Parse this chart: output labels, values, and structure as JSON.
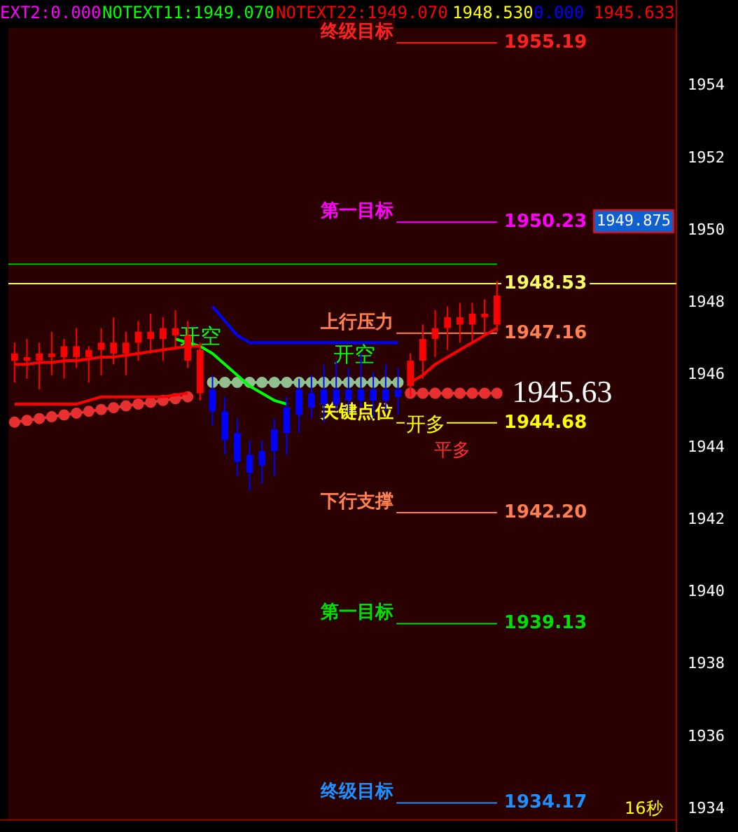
{
  "chart_data": {
    "type": "candlestick",
    "categories": [
      null,
      null,
      null,
      null,
      null,
      null,
      null,
      null,
      null,
      null,
      null,
      null,
      null,
      null,
      null,
      null,
      null,
      null,
      null,
      null,
      null,
      null,
      null,
      null,
      null,
      null,
      null,
      null,
      null,
      null,
      null,
      null,
      null,
      null,
      null,
      null,
      null,
      null,
      null,
      null,
      null,
      null,
      null,
      null,
      null,
      null,
      null,
      null,
      null,
      null,
      null,
      null,
      null,
      null
    ],
    "ohlc": [
      [
        1946.4,
        1946.9,
        1945.8,
        1946.6
      ],
      [
        1946.4,
        1947.0,
        1945.9,
        1946.5
      ],
      [
        1946.4,
        1946.9,
        1945.6,
        1946.6
      ],
      [
        1946.5,
        1947.2,
        1946.0,
        1946.6
      ],
      [
        1946.5,
        1947.0,
        1945.9,
        1946.8
      ],
      [
        1946.5,
        1947.3,
        1946.2,
        1946.8
      ],
      [
        1946.5,
        1946.8,
        1945.8,
        1946.7
      ],
      [
        1946.7,
        1947.3,
        1946.0,
        1946.9
      ],
      [
        1946.6,
        1947.6,
        1946.3,
        1946.9
      ],
      [
        1946.6,
        1947.2,
        1946.0,
        1946.9
      ],
      [
        1946.9,
        1947.5,
        1946.4,
        1947.2
      ],
      [
        1947.0,
        1947.7,
        1946.6,
        1947.2
      ],
      [
        1947.0,
        1947.6,
        1946.4,
        1947.3
      ],
      [
        1947.1,
        1947.8,
        1946.7,
        1947.3
      ],
      [
        1946.4,
        1947.5,
        1946.2,
        1947.1
      ],
      [
        1945.5,
        1946.9,
        1945.3,
        1946.7
      ],
      [
        1945.6,
        1946.0,
        1944.6,
        1945.0
      ],
      [
        1945.0,
        1945.4,
        1943.8,
        1944.2
      ],
      [
        1944.4,
        1944.8,
        1943.2,
        1943.6
      ],
      [
        1943.8,
        1944.2,
        1942.8,
        1943.3
      ],
      [
        1943.9,
        1944.2,
        1943.0,
        1943.5
      ],
      [
        1944.5,
        1944.8,
        1943.2,
        1943.9
      ],
      [
        1945.1,
        1945.4,
        1943.8,
        1944.4
      ],
      [
        1945.6,
        1945.9,
        1944.4,
        1944.9
      ],
      [
        1945.5,
        1946.0,
        1944.8,
        1945.1
      ],
      [
        1945.6,
        1946.3,
        1944.7,
        1945.2
      ],
      [
        1945.6,
        1946.4,
        1945.0,
        1945.2
      ],
      [
        1945.6,
        1946.2,
        1944.9,
        1945.3
      ],
      [
        1945.6,
        1946.6,
        1945.1,
        1945.3
      ],
      [
        1945.6,
        1946.1,
        1944.8,
        1945.3
      ],
      [
        1945.6,
        1946.3,
        1945.0,
        1945.3
      ],
      [
        1945.6,
        1946.2,
        1944.9,
        1945.4
      ],
      [
        1945.7,
        1946.6,
        1945.4,
        1946.4
      ],
      [
        1946.4,
        1947.4,
        1945.9,
        1947.0
      ],
      [
        1947.0,
        1947.8,
        1946.5,
        1947.3
      ],
      [
        1947.3,
        1947.9,
        1946.7,
        1947.6
      ],
      [
        1947.4,
        1948.0,
        1946.9,
        1947.6
      ],
      [
        1947.4,
        1948.0,
        1946.9,
        1947.7
      ],
      [
        1947.6,
        1948.1,
        1947.1,
        1947.7
      ],
      [
        1947.4,
        1948.6,
        1947.2,
        1948.2
      ],
      null,
      null,
      null,
      null,
      null,
      null,
      null,
      null,
      null,
      null,
      null,
      null,
      null,
      null
    ],
    "colors": [
      "#ff0000",
      "#ff0000",
      "#ff0000",
      "#ff0000",
      "#ff0000",
      "#ff0000",
      "#ff0000",
      "#ff0000",
      "#ff0000",
      "#ff0000",
      "#ff0000",
      "#ff0000",
      "#ff0000",
      "#ff0000",
      "#ff0000",
      "#ff0000",
      "#0000ff",
      "#0000ff",
      "#0000ff",
      "#0000ff",
      "#0000ff",
      "#0000ff",
      "#0000ff",
      "#0000ff",
      "#0000ff",
      "#0000ff",
      "#0000ff",
      "#0000ff",
      "#0000ff",
      "#0000ff",
      "#0000ff",
      "#0000ff",
      "#ff0000",
      "#ff0000",
      "#ff0000",
      "#ff0000",
      "#ff0000",
      "#ff0000",
      "#ff0000",
      "#ff0000",
      null,
      null,
      null,
      null,
      null,
      null,
      null,
      null,
      null,
      null,
      null,
      null,
      null,
      null
    ],
    "series": [
      {
        "type": "line",
        "color": "#ff0000",
        "marker": "none",
        "values": [
          1946.3,
          1946.3,
          1946.35,
          1946.35,
          1946.4,
          1946.4,
          1946.45,
          1946.5,
          1946.5,
          1946.55,
          1946.6,
          1946.65,
          1946.7,
          1946.75,
          1946.8,
          1946.8,
          null,
          null,
          null,
          null,
          null,
          null,
          null,
          null,
          null,
          null,
          null,
          null,
          null,
          null,
          null,
          null,
          1945.8,
          1946.0,
          1946.3,
          1946.5,
          1946.7,
          1946.9,
          1947.1,
          1947.3,
          null,
          null,
          null,
          null,
          null,
          null,
          null,
          null,
          null,
          null,
          null,
          null,
          null,
          null
        ]
      },
      {
        "type": "line",
        "color": "#00ff00",
        "marker": "none",
        "values": [
          null,
          null,
          null,
          null,
          null,
          null,
          null,
          null,
          null,
          null,
          null,
          null,
          null,
          1947.0,
          1946.9,
          1946.8,
          1946.6,
          1946.3,
          1946.0,
          1945.7,
          1945.5,
          1945.3,
          1945.2,
          null,
          null,
          null,
          null,
          null,
          null,
          null,
          null,
          null,
          null,
          null,
          null,
          null,
          null,
          null,
          null,
          null,
          null,
          null,
          null,
          null,
          null,
          null,
          null,
          null,
          null,
          null,
          null,
          null,
          null,
          null
        ]
      },
      {
        "type": "line",
        "color": "#0000ff",
        "marker": "none",
        "values": [
          null,
          null,
          null,
          null,
          null,
          null,
          null,
          null,
          null,
          null,
          null,
          null,
          null,
          null,
          null,
          null,
          1947.9,
          1947.5,
          1947.1,
          1946.9,
          1946.9,
          1946.9,
          1946.9,
          1946.9,
          1946.9,
          1946.9,
          1946.9,
          1946.9,
          1946.9,
          1946.9,
          1946.9,
          1946.9,
          null,
          null,
          null,
          null,
          null,
          null,
          null,
          null,
          null,
          null,
          null,
          null,
          null,
          null,
          null,
          null,
          null,
          null,
          null,
          null,
          null,
          null
        ]
      },
      {
        "type": "line",
        "color": "#ff0000",
        "marker": "none",
        "values": [
          1945.2,
          1945.2,
          1945.2,
          1945.2,
          1945.2,
          1945.2,
          1945.3,
          1945.4,
          1945.4,
          1945.4,
          1945.4,
          1945.4,
          1945.4,
          1945.45,
          1945.5,
          null,
          null,
          null,
          null,
          null,
          null,
          null,
          null,
          null,
          null,
          null,
          null,
          null,
          null,
          null,
          null,
          null,
          null,
          null,
          null,
          null,
          null,
          null,
          null,
          null,
          null,
          null,
          null,
          null,
          null,
          null,
          null,
          null,
          null,
          null,
          null,
          null,
          null,
          null
        ]
      },
      {
        "type": "line",
        "color": "#e83030",
        "marker": "circle",
        "values": [
          1944.7,
          1944.75,
          1944.8,
          1944.85,
          1944.9,
          1944.95,
          1945.0,
          1945.05,
          1945.1,
          1945.15,
          1945.2,
          1945.25,
          1945.3,
          1945.35,
          1945.4,
          null,
          null,
          null,
          null,
          null,
          null,
          null,
          null,
          null,
          null,
          null,
          null,
          null,
          null,
          null,
          null,
          null,
          1945.5,
          1945.5,
          1945.5,
          1945.5,
          1945.5,
          1945.5,
          1945.5,
          1945.5,
          null,
          null,
          null,
          null,
          null,
          null,
          null,
          null,
          null,
          null,
          null,
          null,
          null,
          null
        ]
      },
      {
        "type": "line",
        "color": "#90c090",
        "marker": "circle",
        "values": [
          null,
          null,
          null,
          null,
          null,
          null,
          null,
          null,
          null,
          null,
          null,
          null,
          null,
          null,
          null,
          null,
          1945.8,
          1945.8,
          1945.8,
          1945.8,
          1945.8,
          1945.8,
          1945.8,
          1945.8,
          1945.8,
          1945.8,
          1945.8,
          1945.8,
          1945.8,
          1945.8,
          1945.8,
          1945.8,
          null,
          null,
          null,
          null,
          null,
          null,
          null,
          null,
          null,
          null,
          null,
          null,
          null,
          null,
          null,
          null,
          null,
          null,
          null,
          null,
          null,
          null
        ]
      }
    ],
    "ylim": [
      1933.7,
      1955.6
    ],
    "yticks": [
      1934,
      1936,
      1938,
      1940,
      1942,
      1944,
      1946,
      1948,
      1950,
      1952,
      1954
    ],
    "tick_labels": "y",
    "grid": false,
    "legend": false,
    "ref_lines": [
      {
        "axis": "y",
        "value": 1955.19,
        "label": "终级目标",
        "color": "#ff2020"
      },
      {
        "axis": "y",
        "value": 1950.23,
        "label": "第一目标",
        "color": "#ff00ff"
      },
      {
        "axis": "y",
        "value": 1949.07,
        "label": null,
        "color": "#00c000"
      },
      {
        "axis": "y",
        "value": 1948.53,
        "color": "#ffff60"
      },
      {
        "axis": "y",
        "value": 1947.16,
        "label": "上行压力",
        "color": "#ff8050"
      },
      {
        "axis": "y",
        "value": 1944.68,
        "label": "关键点位",
        "color": "#ffff00"
      },
      {
        "axis": "y",
        "value": 1942.2,
        "label": "下行支撑",
        "color": "#ff8050"
      },
      {
        "axis": "y",
        "value": 1939.13,
        "label": "第一目标",
        "color": "#00e000"
      },
      {
        "axis": "y",
        "value": 1934.17,
        "label": "终级目标",
        "color": "#1e90ff"
      }
    ],
    "annotations": [
      "EXT2:0.000",
      "NOTEXT11:1949.070",
      "NOTEXT22:1949.070",
      "1948.530",
      "0.000",
      "1945.633",
      "1945.63",
      "1949.875",
      "开空",
      "开空",
      "开多",
      "平多",
      "16秒",
      "1955.19",
      "1950.23",
      "1948.53",
      "1947.16",
      "1944.68",
      "1942.20",
      "1939.13",
      "1934.17"
    ]
  }
}
